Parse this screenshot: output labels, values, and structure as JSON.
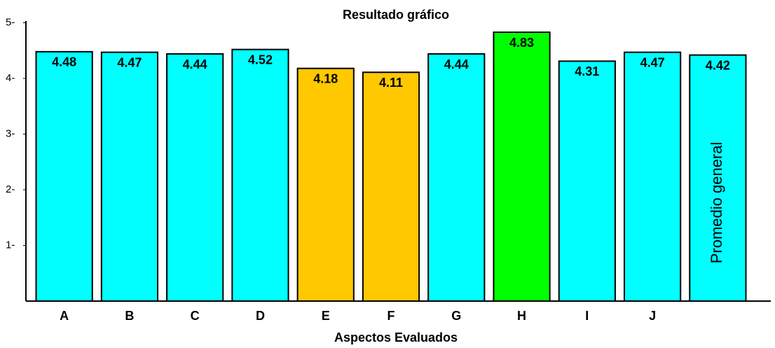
{
  "chart_data": {
    "type": "bar",
    "title": "Resultado gráfico",
    "x_label": "Aspectos Evaluados",
    "categories": [
      "A",
      "B",
      "C",
      "D",
      "E",
      "F",
      "G",
      "H",
      "I",
      "J",
      null
    ],
    "values": [
      4.48,
      4.47,
      4.44,
      4.52,
      4.18,
      4.11,
      4.44,
      4.83,
      4.31,
      4.47,
      4.42
    ],
    "colors": [
      "#00ffff",
      "#00ffff",
      "#00ffff",
      "#00ffff",
      "#ffc800",
      "#ffc800",
      "#00ffff",
      "#00ff00",
      "#00ffff",
      "#00ffff",
      "#00ffff"
    ],
    "annotation": "Promedio general",
    "ylim": [
      0,
      5
    ],
    "yticks": [
      {
        "value": 1,
        "label": "1-"
      },
      {
        "value": 2,
        "label": "2-"
      },
      {
        "value": 3,
        "label": "3-"
      },
      {
        "value": 4,
        "label": "4-"
      },
      {
        "value": 5,
        "label": "5-"
      }
    ],
    "grid": false
  }
}
